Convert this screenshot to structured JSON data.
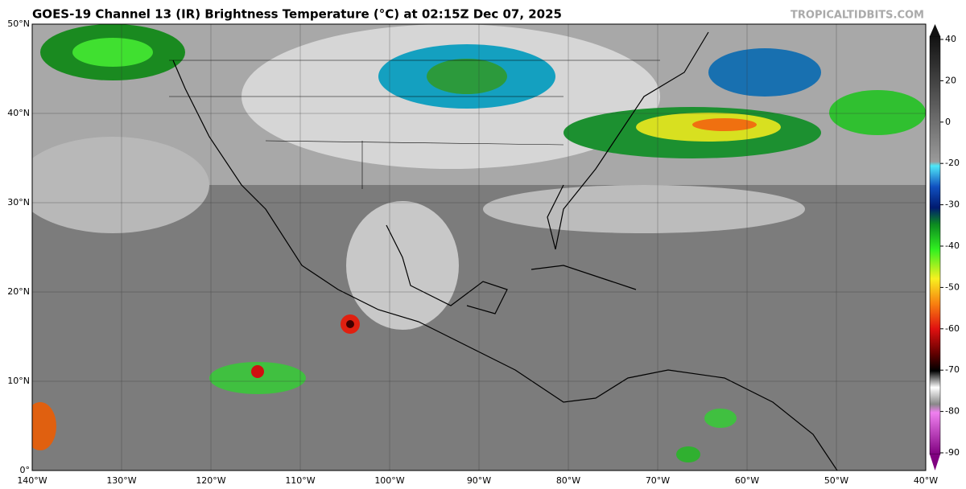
{
  "header": {
    "title": "GOES-19 Channel 13 (IR) Brightness Temperature (°C) at 02:15Z Dec 07, 2025",
    "credit": "TROPICALTIDBITS.COM"
  },
  "map": {
    "lat_labels": [
      "50°N",
      "40°N",
      "30°N",
      "20°N",
      "10°N",
      "0°"
    ],
    "lon_labels": [
      "140°W",
      "130°W",
      "120°W",
      "110°W",
      "100°W",
      "90°W",
      "80°W",
      "70°W",
      "60°W",
      "50°W",
      "40°W"
    ]
  },
  "colorbar": {
    "ticks": [
      "40",
      "20",
      "0",
      "-20",
      "-30",
      "-40",
      "-50",
      "-60",
      "-70",
      "-80",
      "-90"
    ]
  }
}
